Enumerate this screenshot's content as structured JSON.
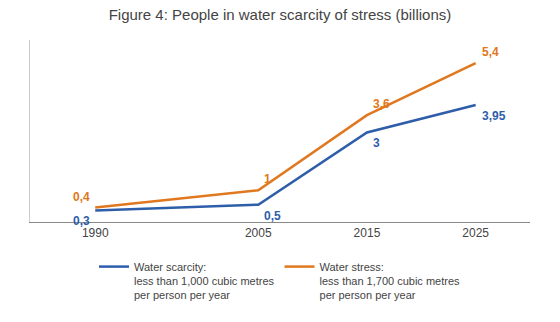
{
  "chart_data": {
    "type": "line",
    "title": "Figure 4: People in water scarcity of stress (billions)",
    "x": [
      1990,
      2005,
      2015,
      2025
    ],
    "series": [
      {
        "name": "Water scarcity:\nless than 1,000 cubic metres\nper person per year",
        "color": "#2E5EAA",
        "values": [
          0.3,
          0.5,
          3.0,
          3.95
        ],
        "value_labels": [
          "0,3",
          "0,5",
          "3",
          "3,95"
        ]
      },
      {
        "name": "Water stress:\nless than 1,700 cubic metres\nper person per year",
        "color": "#E07820",
        "values": [
          0.4,
          1.0,
          3.6,
          5.4
        ],
        "value_labels": [
          "0,4",
          "1",
          "3,6",
          "5,4"
        ]
      }
    ],
    "xlim": [
      1984,
      2030
    ],
    "xticks": [
      1990,
      2005,
      2015,
      2025
    ],
    "ylim": [
      -0.1,
      6.2
    ],
    "grid": false,
    "data_labels": true,
    "tick_labels": "x",
    "legend": "bottom",
    "line_style": "solid"
  }
}
